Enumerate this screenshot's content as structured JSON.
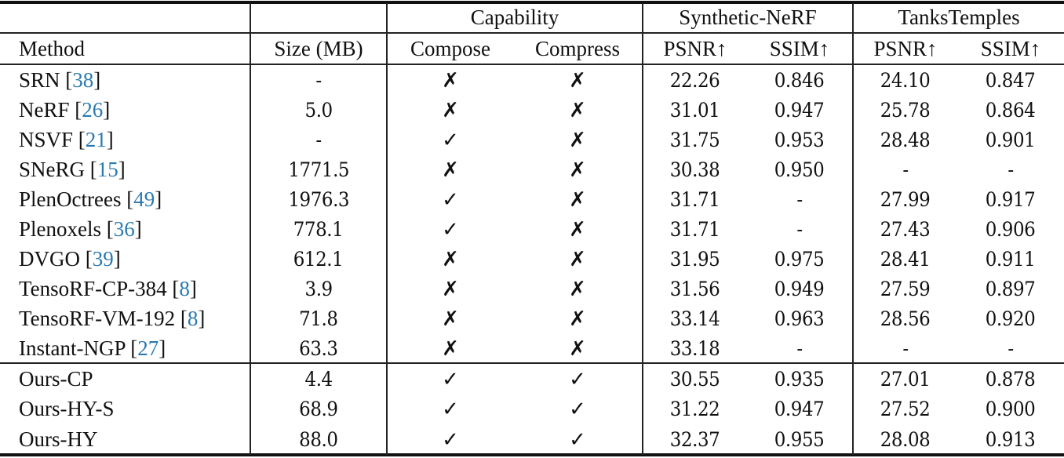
{
  "table": {
    "group_headers": [
      {
        "label": "",
        "span": "size"
      },
      {
        "label": "Capability",
        "span": "capability"
      },
      {
        "label": "Synthetic-NeRF",
        "span": "synthetic"
      },
      {
        "label": "TanksTemples",
        "span": "tanks"
      }
    ],
    "column_headers": [
      "Method",
      "Size (MB)",
      "Compose",
      "Compress",
      "PSNR↑",
      "SSIM↑",
      "PSNR↑",
      "SSIM↑"
    ],
    "baseline_rows": [
      {
        "method": "SRN",
        "cite": "38",
        "size": "-",
        "compose": "✗",
        "compress": "✗",
        "syn_psnr": "22.26",
        "syn_ssim": "0.846",
        "tt_psnr": "24.10",
        "tt_ssim": "0.847"
      },
      {
        "method": "NeRF",
        "cite": "26",
        "size": "5.0",
        "compose": "✗",
        "compress": "✗",
        "syn_psnr": "31.01",
        "syn_ssim": "0.947",
        "tt_psnr": "25.78",
        "tt_ssim": "0.864"
      },
      {
        "method": "NSVF",
        "cite": "21",
        "size": "-",
        "compose": "✓",
        "compress": "✗",
        "syn_psnr": "31.75",
        "syn_ssim": "0.953",
        "tt_psnr": "28.48",
        "tt_ssim": "0.901"
      },
      {
        "method": "SNeRG",
        "cite": "15",
        "size": "1771.5",
        "compose": "✗",
        "compress": "✗",
        "syn_psnr": "30.38",
        "syn_ssim": "0.950",
        "tt_psnr": "-",
        "tt_ssim": "-"
      },
      {
        "method": "PlenOctrees",
        "cite": "49",
        "size": "1976.3",
        "compose": "✓",
        "compress": "✗",
        "syn_psnr": "31.71",
        "syn_ssim": "-",
        "tt_psnr": "27.99",
        "tt_ssim": "0.917"
      },
      {
        "method": "Plenoxels",
        "cite": "36",
        "size": "778.1",
        "compose": "✓",
        "compress": "✗",
        "syn_psnr": "31.71",
        "syn_ssim": "-",
        "tt_psnr": "27.43",
        "tt_ssim": "0.906"
      },
      {
        "method": "DVGO",
        "cite": "39",
        "size": "612.1",
        "compose": "✗",
        "compress": "✗",
        "syn_psnr": "31.95",
        "syn_ssim": "0.975",
        "tt_psnr": "28.41",
        "tt_ssim": "0.911"
      },
      {
        "method": "TensoRF-CP-384",
        "cite": "8",
        "size": "3.9",
        "compose": "✗",
        "compress": "✗",
        "syn_psnr": "31.56",
        "syn_ssim": "0.949",
        "tt_psnr": "27.59",
        "tt_ssim": "0.897"
      },
      {
        "method": "TensoRF-VM-192",
        "cite": "8",
        "size": "71.8",
        "compose": "✗",
        "compress": "✗",
        "syn_psnr": "33.14",
        "syn_ssim": "0.963",
        "tt_psnr": "28.56",
        "tt_ssim": "0.920"
      },
      {
        "method": "Instant-NGP",
        "cite": "27",
        "size": "63.3",
        "compose": "✗",
        "compress": "✗",
        "syn_psnr": "33.18",
        "syn_ssim": "-",
        "tt_psnr": "-",
        "tt_ssim": "-"
      }
    ],
    "ours_rows": [
      {
        "method": "Ours-CP",
        "size": "4.4",
        "compose": "✓",
        "compress": "✓",
        "syn_psnr": "30.55",
        "syn_ssim": "0.935",
        "tt_psnr": "27.01",
        "tt_ssim": "0.878"
      },
      {
        "method": "Ours-HY-S",
        "size": "68.9",
        "compose": "✓",
        "compress": "✓",
        "syn_psnr": "31.22",
        "syn_ssim": "0.947",
        "tt_psnr": "27.52",
        "tt_ssim": "0.900"
      },
      {
        "method": "Ours-HY",
        "size": "88.0",
        "compose": "✓",
        "compress": "✓",
        "syn_psnr": "32.37",
        "syn_ssim": "0.955",
        "tt_psnr": "28.08",
        "tt_ssim": "0.913"
      }
    ]
  },
  "colors": {
    "citation": "#2a7ab0",
    "text": "#111111",
    "rules": "#222222"
  }
}
